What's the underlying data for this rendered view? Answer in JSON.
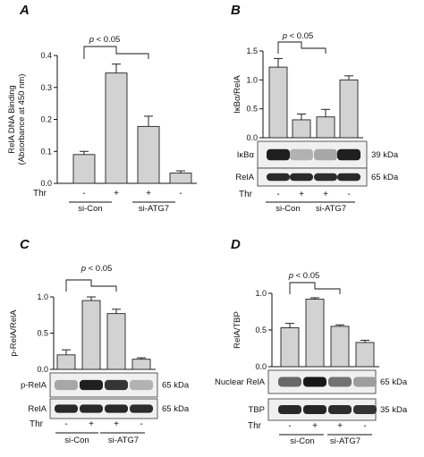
{
  "chart_data": [
    {
      "panel": "A",
      "type": "bar",
      "ylabel": [
        "RelA DNA Binding",
        "(Absorbance at 450 nm)"
      ],
      "ylim": [
        0,
        0.4
      ],
      "yticks": [
        "0.0",
        "0.1",
        "0.2",
        "0.3",
        "0.4"
      ],
      "values": [
        0.09,
        0.345,
        0.178,
        0.032
      ],
      "errors": [
        0.01,
        0.028,
        0.032,
        0.007
      ],
      "treatment_label": "Thr",
      "treatment": [
        "-",
        "+",
        "+",
        "-"
      ],
      "groups": [
        "si-Con",
        "si-ATG7"
      ],
      "significance": "p < 0.05",
      "blots": []
    },
    {
      "panel": "B",
      "type": "bar",
      "ylabel": [
        "IκBα/RelA"
      ],
      "ylim": [
        0,
        1.5
      ],
      "yticks": [
        "0.0",
        "0.5",
        "1.0",
        "1.5"
      ],
      "values": [
        1.22,
        0.31,
        0.36,
        1.0
      ],
      "errors": [
        0.15,
        0.1,
        0.13,
        0.07
      ],
      "treatment_label": "Thr",
      "treatment": [
        "-",
        "+",
        "+",
        "-"
      ],
      "groups": [
        "si-Con",
        "si-ATG7"
      ],
      "significance": "p < 0.05",
      "blots": [
        {
          "label": "IκBα",
          "kda": "39 kDa",
          "intensity": [
            0.95,
            0.25,
            0.3,
            0.95
          ]
        },
        {
          "label": "RelA",
          "kda": "65 kDa",
          "intensity": [
            0.9,
            0.9,
            0.88,
            0.9
          ]
        }
      ]
    },
    {
      "panel": "C",
      "type": "bar",
      "ylabel": [
        "p-RelA/RelA"
      ],
      "ylim": [
        0,
        1.0
      ],
      "yticks": [
        "0.0",
        "0.5",
        "1.0"
      ],
      "values": [
        0.2,
        0.95,
        0.77,
        0.14
      ],
      "errors": [
        0.07,
        0.05,
        0.06,
        0.02
      ],
      "treatment_label": "Thr",
      "treatment": [
        "-",
        "+",
        "+",
        "-"
      ],
      "groups": [
        "si-Con",
        "si-ATG7"
      ],
      "significance": "p < 0.05",
      "blots": [
        {
          "label": "p-RelA",
          "kda": "65 kDa",
          "intensity": [
            0.3,
            0.95,
            0.85,
            0.25
          ]
        },
        {
          "label": "RelA",
          "kda": "65 kDa",
          "intensity": [
            0.9,
            0.9,
            0.9,
            0.88
          ]
        }
      ]
    },
    {
      "panel": "D",
      "type": "bar",
      "ylabel": [
        "RelA/TBP"
      ],
      "ylim": [
        0,
        1.0
      ],
      "yticks": [
        "0.0",
        "0.5",
        "1.0"
      ],
      "values": [
        0.53,
        0.92,
        0.55,
        0.33
      ],
      "errors": [
        0.06,
        0.02,
        0.02,
        0.03
      ],
      "treatment_label": "Thr",
      "treatment": [
        "-",
        "+",
        "+",
        "-"
      ],
      "groups": [
        "si-Con",
        "si-ATG7"
      ],
      "significance": "p < 0.05",
      "blots": [
        {
          "label": "Nuclear RelA",
          "kda": "65 kDa",
          "intensity": [
            0.6,
            0.98,
            0.55,
            0.35
          ]
        },
        {
          "label": "TBP",
          "kda": "35 kDa",
          "intensity": [
            0.9,
            0.92,
            0.88,
            0.85
          ]
        }
      ]
    }
  ]
}
